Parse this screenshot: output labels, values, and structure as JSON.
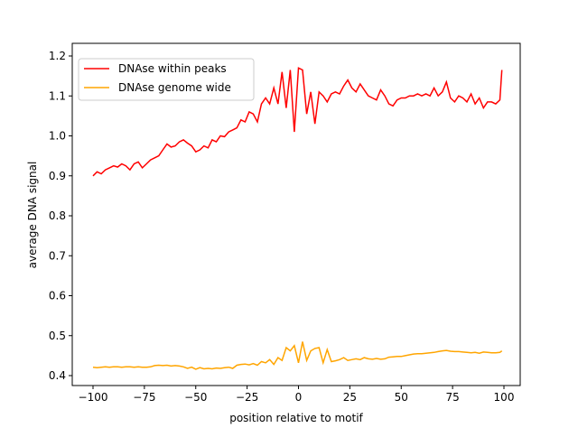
{
  "chart_data": {
    "type": "line",
    "title": "",
    "xlabel": "position relative to motif",
    "ylabel": "average DNA signal",
    "xlim": [
      -110,
      110
    ],
    "ylim": [
      0.375,
      1.22
    ],
    "xticks": [
      -100,
      -75,
      -50,
      -25,
      0,
      25,
      50,
      75,
      100
    ],
    "yticks": [
      0.4,
      0.5,
      0.6,
      0.7,
      0.8,
      0.9,
      1.0,
      1.1,
      1.2
    ],
    "ytick_labels": [
      "0.4",
      "0.5",
      "0.6",
      "0.7",
      "0.8",
      "0.9",
      "1.0",
      "1.1",
      "1.2"
    ],
    "grid": false,
    "legend_position": "upper-left",
    "x": [
      -100,
      -98,
      -96,
      -94,
      -92,
      -90,
      -88,
      -86,
      -84,
      -82,
      -80,
      -78,
      -76,
      -74,
      -72,
      -70,
      -68,
      -66,
      -64,
      -62,
      -60,
      -58,
      -56,
      -54,
      -52,
      -50,
      -48,
      -46,
      -44,
      -42,
      -40,
      -38,
      -36,
      -34,
      -32,
      -30,
      -28,
      -26,
      -24,
      -22,
      -20,
      -18,
      -16,
      -14,
      -12,
      -10,
      -8,
      -6,
      -4,
      -2,
      0,
      2,
      4,
      6,
      8,
      10,
      12,
      14,
      16,
      18,
      20,
      22,
      24,
      26,
      28,
      30,
      32,
      34,
      36,
      38,
      40,
      42,
      44,
      46,
      48,
      50,
      52,
      54,
      56,
      58,
      60,
      62,
      64,
      66,
      68,
      70,
      72,
      74,
      76,
      78,
      80,
      82,
      84,
      86,
      88,
      90,
      92,
      94,
      96,
      98,
      99
    ],
    "series": [
      {
        "name": "DNAse within peaks",
        "color": "#ff0000",
        "values": [
          0.9,
          0.91,
          0.905,
          0.915,
          0.92,
          0.925,
          0.922,
          0.93,
          0.925,
          0.915,
          0.93,
          0.935,
          0.92,
          0.93,
          0.94,
          0.945,
          0.95,
          0.965,
          0.98,
          0.972,
          0.975,
          0.985,
          0.99,
          0.982,
          0.975,
          0.96,
          0.965,
          0.975,
          0.97,
          0.99,
          0.985,
          1.0,
          0.998,
          1.01,
          1.015,
          1.02,
          1.04,
          1.035,
          1.06,
          1.055,
          1.035,
          1.08,
          1.095,
          1.08,
          1.12,
          1.08,
          1.16,
          1.07,
          1.165,
          1.01,
          1.17,
          1.165,
          1.055,
          1.11,
          1.03,
          1.11,
          1.1,
          1.085,
          1.105,
          1.11,
          1.105,
          1.125,
          1.14,
          1.12,
          1.11,
          1.13,
          1.115,
          1.1,
          1.095,
          1.09,
          1.115,
          1.1,
          1.08,
          1.075,
          1.09,
          1.095,
          1.095,
          1.1,
          1.1,
          1.105,
          1.1,
          1.105,
          1.1,
          1.12,
          1.1,
          1.11,
          1.135,
          1.095,
          1.085,
          1.1,
          1.095,
          1.085,
          1.105,
          1.08,
          1.095,
          1.07,
          1.085,
          1.085,
          1.08,
          1.09,
          1.165
        ]
      },
      {
        "name": "DNAse genome wide",
        "color": "#ffa500",
        "values": [
          0.421,
          0.42,
          0.421,
          0.422,
          0.421,
          0.422,
          0.422,
          0.421,
          0.422,
          0.422,
          0.421,
          0.422,
          0.421,
          0.421,
          0.422,
          0.425,
          0.426,
          0.425,
          0.426,
          0.424,
          0.425,
          0.424,
          0.422,
          0.418,
          0.421,
          0.416,
          0.42,
          0.417,
          0.418,
          0.417,
          0.419,
          0.418,
          0.42,
          0.421,
          0.418,
          0.426,
          0.428,
          0.429,
          0.427,
          0.43,
          0.426,
          0.435,
          0.432,
          0.44,
          0.428,
          0.445,
          0.438,
          0.47,
          0.462,
          0.475,
          0.432,
          0.485,
          0.438,
          0.462,
          0.468,
          0.47,
          0.432,
          0.465,
          0.435,
          0.437,
          0.44,
          0.445,
          0.438,
          0.44,
          0.442,
          0.44,
          0.445,
          0.442,
          0.441,
          0.443,
          0.441,
          0.442,
          0.446,
          0.447,
          0.448,
          0.448,
          0.45,
          0.452,
          0.454,
          0.455,
          0.455,
          0.456,
          0.457,
          0.458,
          0.46,
          0.462,
          0.463,
          0.461,
          0.46,
          0.46,
          0.459,
          0.458,
          0.457,
          0.458,
          0.456,
          0.459,
          0.458,
          0.457,
          0.457,
          0.458,
          0.462
        ]
      }
    ]
  }
}
